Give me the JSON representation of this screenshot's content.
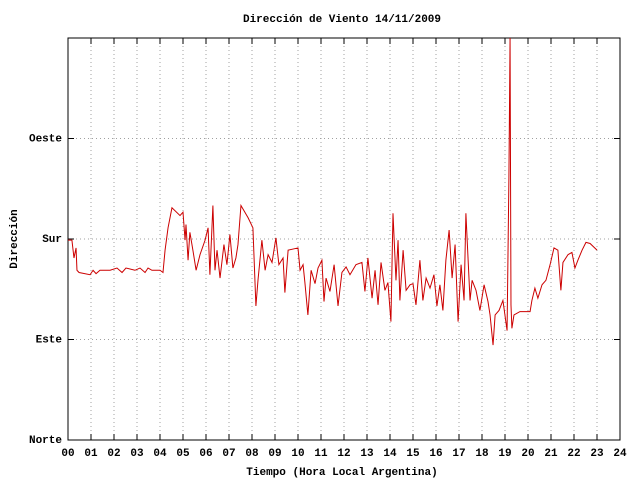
{
  "chart_data": {
    "type": "line",
    "title": "Dirección de Viento 14/11/2009",
    "x_label": "Tiempo (Hora Local Argentina)",
    "y_label": "Dirección",
    "color": "#cc0000",
    "grid": true,
    "xlim": [
      0,
      24
    ],
    "ylim": [
      0,
      360
    ],
    "xticks": [
      {
        "value": 0,
        "label": "00"
      },
      {
        "value": 1,
        "label": "01"
      },
      {
        "value": 2,
        "label": "02"
      },
      {
        "value": 3,
        "label": "03"
      },
      {
        "value": 4,
        "label": "04"
      },
      {
        "value": 5,
        "label": "05"
      },
      {
        "value": 6,
        "label": "06"
      },
      {
        "value": 7,
        "label": "07"
      },
      {
        "value": 8,
        "label": "08"
      },
      {
        "value": 9,
        "label": "09"
      },
      10,
      11,
      12,
      13,
      14,
      15,
      16,
      17,
      18,
      19,
      20,
      21,
      22,
      23,
      24
    ],
    "yticks": [
      {
        "value": 0,
        "label": "Norte"
      },
      {
        "value": 90,
        "label": "Este"
      },
      {
        "value": 180,
        "label": "Sur"
      },
      {
        "value": 270,
        "label": "Oeste"
      }
    ],
    "x": [
      0,
      0.17,
      0.26,
      0.35,
      0.39,
      0.48,
      0.96,
      1.09,
      1.22,
      1.39,
      1.83,
      2.13,
      2.35,
      2.52,
      2.91,
      3.13,
      3.35,
      3.48,
      3.65,
      4,
      4.13,
      4.22,
      4.35,
      4.52,
      4.87,
      5,
      5.09,
      5.13,
      5.22,
      5.3,
      5.43,
      5.57,
      5.74,
      5.96,
      6.09,
      6.17,
      6.3,
      6.39,
      6.48,
      6.61,
      6.78,
      6.91,
      7.04,
      7.17,
      7.3,
      7.39,
      7.52,
      7.83,
      8.04,
      8.17,
      8.26,
      8.43,
      8.57,
      8.7,
      8.87,
      9.04,
      9.17,
      9.35,
      9.43,
      9.57,
      10,
      10.09,
      10.22,
      10.3,
      10.43,
      10.57,
      10.74,
      10.87,
      11.04,
      11.13,
      11.22,
      11.39,
      11.57,
      11.74,
      11.91,
      12.09,
      12.26,
      12.52,
      12.78,
      12.91,
      13.04,
      13.22,
      13.35,
      13.48,
      13.61,
      13.78,
      13.91,
      14.04,
      14.13,
      14.26,
      14.35,
      14.43,
      14.57,
      14.7,
      14.87,
      15,
      15.13,
      15.3,
      15.43,
      15.57,
      15.74,
      15.91,
      16.04,
      16.17,
      16.3,
      16.43,
      16.57,
      16.7,
      16.83,
      16.96,
      17.09,
      17.22,
      17.3,
      17.48,
      17.57,
      17.74,
      17.91,
      18.09,
      18.26,
      18.35,
      18.48,
      18.57,
      18.74,
      18.91,
      19.09,
      19.17,
      19.22,
      19.26,
      19.3,
      19.39,
      19.65,
      20.09,
      20.17,
      20.3,
      20.43,
      20.61,
      20.78,
      20.96,
      21.13,
      21.3,
      21.43,
      21.52,
      21.74,
      21.91,
      22.04,
      22.17,
      22.35,
      22.52,
      22.7,
      23
    ],
    "values": [
      179,
      179,
      163,
      172,
      152,
      150,
      148,
      152,
      149,
      152,
      152,
      154,
      150,
      154,
      152,
      154,
      150,
      154,
      152,
      152,
      150,
      170,
      190,
      208,
      201,
      204,
      179,
      193,
      161,
      186,
      170,
      152,
      166,
      179,
      190,
      148,
      210,
      152,
      170,
      145,
      175,
      157,
      184,
      154,
      163,
      175,
      210,
      199,
      190,
      120,
      143,
      179,
      152,
      166,
      159,
      181,
      157,
      163,
      132,
      170,
      172,
      152,
      157,
      141,
      112,
      152,
      140,
      154,
      161,
      124,
      145,
      133,
      157,
      120,
      150,
      155,
      148,
      157,
      159,
      133,
      163,
      127,
      152,
      121,
      159,
      134,
      141,
      106,
      203,
      143,
      179,
      125,
      170,
      134,
      139,
      140,
      121,
      161,
      125,
      145,
      136,
      148,
      120,
      139,
      116,
      161,
      188,
      145,
      175,
      106,
      157,
      125,
      203,
      125,
      143,
      134,
      116,
      139,
      124,
      112,
      85,
      112,
      116,
      125,
      98,
      235,
      360,
      121,
      100,
      112,
      115,
      115,
      125,
      136,
      127,
      139,
      143,
      157,
      172,
      170,
      134,
      159,
      166,
      168,
      154,
      161,
      170,
      177,
      176,
      170
    ]
  }
}
